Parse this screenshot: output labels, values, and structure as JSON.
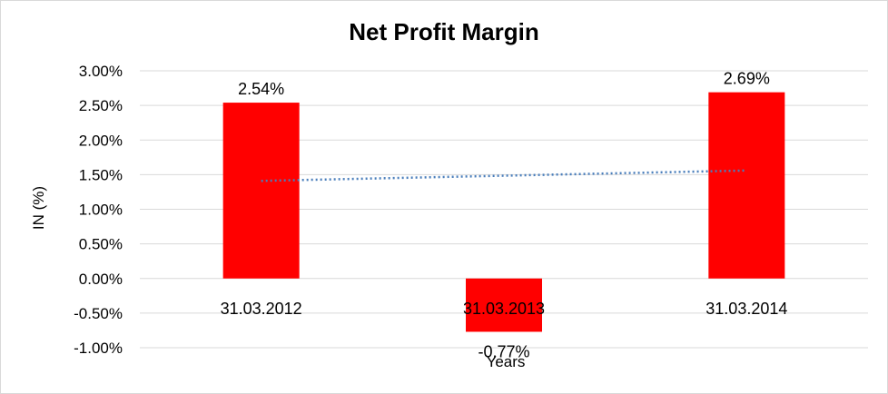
{
  "chart_data": {
    "type": "bar",
    "title": "Net Profit Margin",
    "xlabel": "Years",
    "ylabel": "IN (%)",
    "categories": [
      "31.03.2012",
      "31.03.2013",
      "31.03.2014"
    ],
    "series": [
      {
        "values": [
          2.54,
          -0.77,
          2.69
        ],
        "data_labels": [
          "2.54%",
          "-0.77%",
          "2.69%"
        ],
        "color": "#ff0000"
      }
    ],
    "trendline": {
      "type": "linear",
      "style": "dotted",
      "color": "#4a7ebb",
      "start_value": 1.41,
      "end_value": 1.56
    },
    "ylim": [
      -1.0,
      3.0
    ],
    "ytick_step": 0.5,
    "ytick_labels": [
      "3.00%",
      "2.50%",
      "2.00%",
      "1.50%",
      "1.00%",
      "0.50%",
      "0.00%",
      "-0.50%",
      "-1.00%"
    ],
    "grid": true,
    "legend": "none"
  }
}
